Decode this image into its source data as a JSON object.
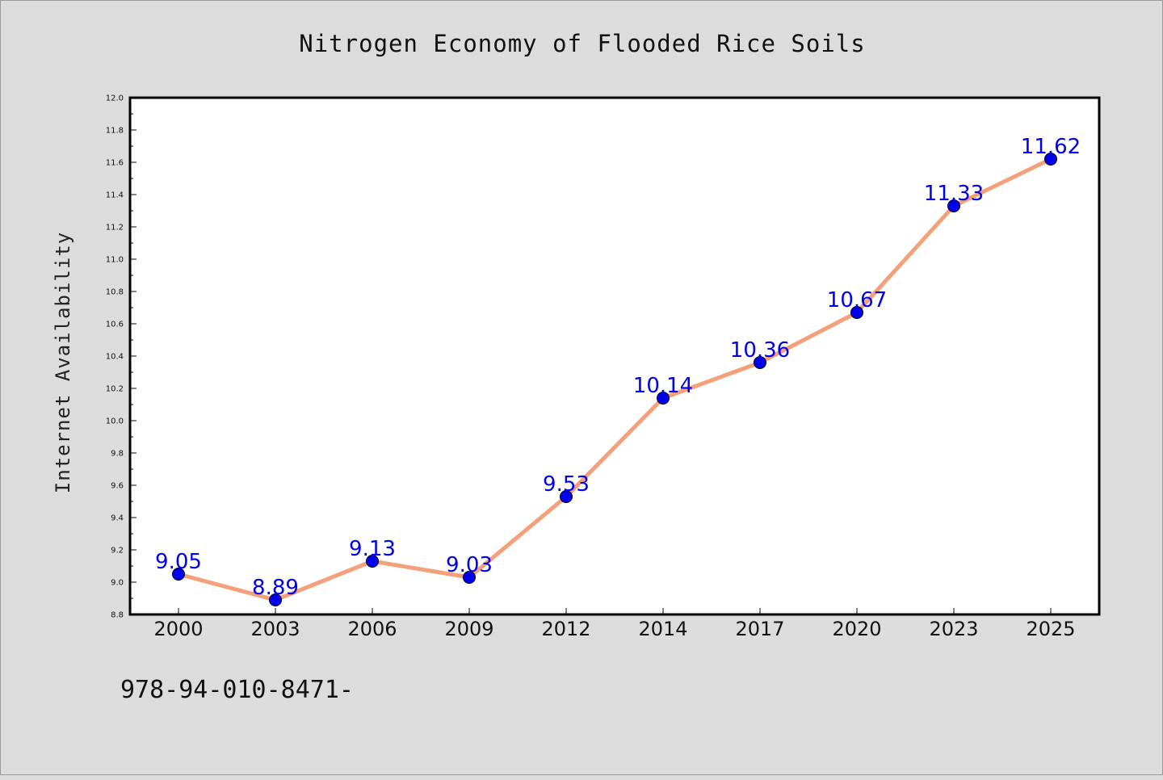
{
  "caption": "978-94-010-8471-",
  "colors": {
    "background": "#dcdcdc",
    "plot_background": "#ffffff",
    "line": "#f4a07a",
    "marker": "#0000ee",
    "data_label": "#0000ee"
  },
  "chart_data": {
    "type": "line",
    "title": "Nitrogen Economy of Flooded Rice Soils",
    "xlabel": "",
    "ylabel": "Internet Availability",
    "categories": [
      "2000",
      "2003",
      "2006",
      "2009",
      "2012",
      "2014",
      "2017",
      "2020",
      "2023",
      "2025"
    ],
    "series": [
      {
        "values": [
          9.05,
          8.89,
          9.13,
          9.03,
          9.53,
          10.14,
          10.36,
          10.67,
          11.33,
          11.62
        ],
        "labels": [
          "9.05",
          "8.89",
          "9.13",
          "9.03",
          "9.53",
          "10.14",
          "10.36",
          "10.67",
          "11.33",
          "11.62"
        ]
      }
    ],
    "ylim": [
      8.8,
      12.0
    ],
    "yticks": [
      "8.8",
      "9.0",
      "9.2",
      "9.4",
      "9.6",
      "9.8",
      "10.0",
      "10.2",
      "10.4",
      "10.6",
      "10.8",
      "11.0",
      "11.2",
      "11.4",
      "11.6",
      "11.8",
      "12.0"
    ],
    "grid": false,
    "legend": "none",
    "markers": true,
    "data_labels": true
  }
}
